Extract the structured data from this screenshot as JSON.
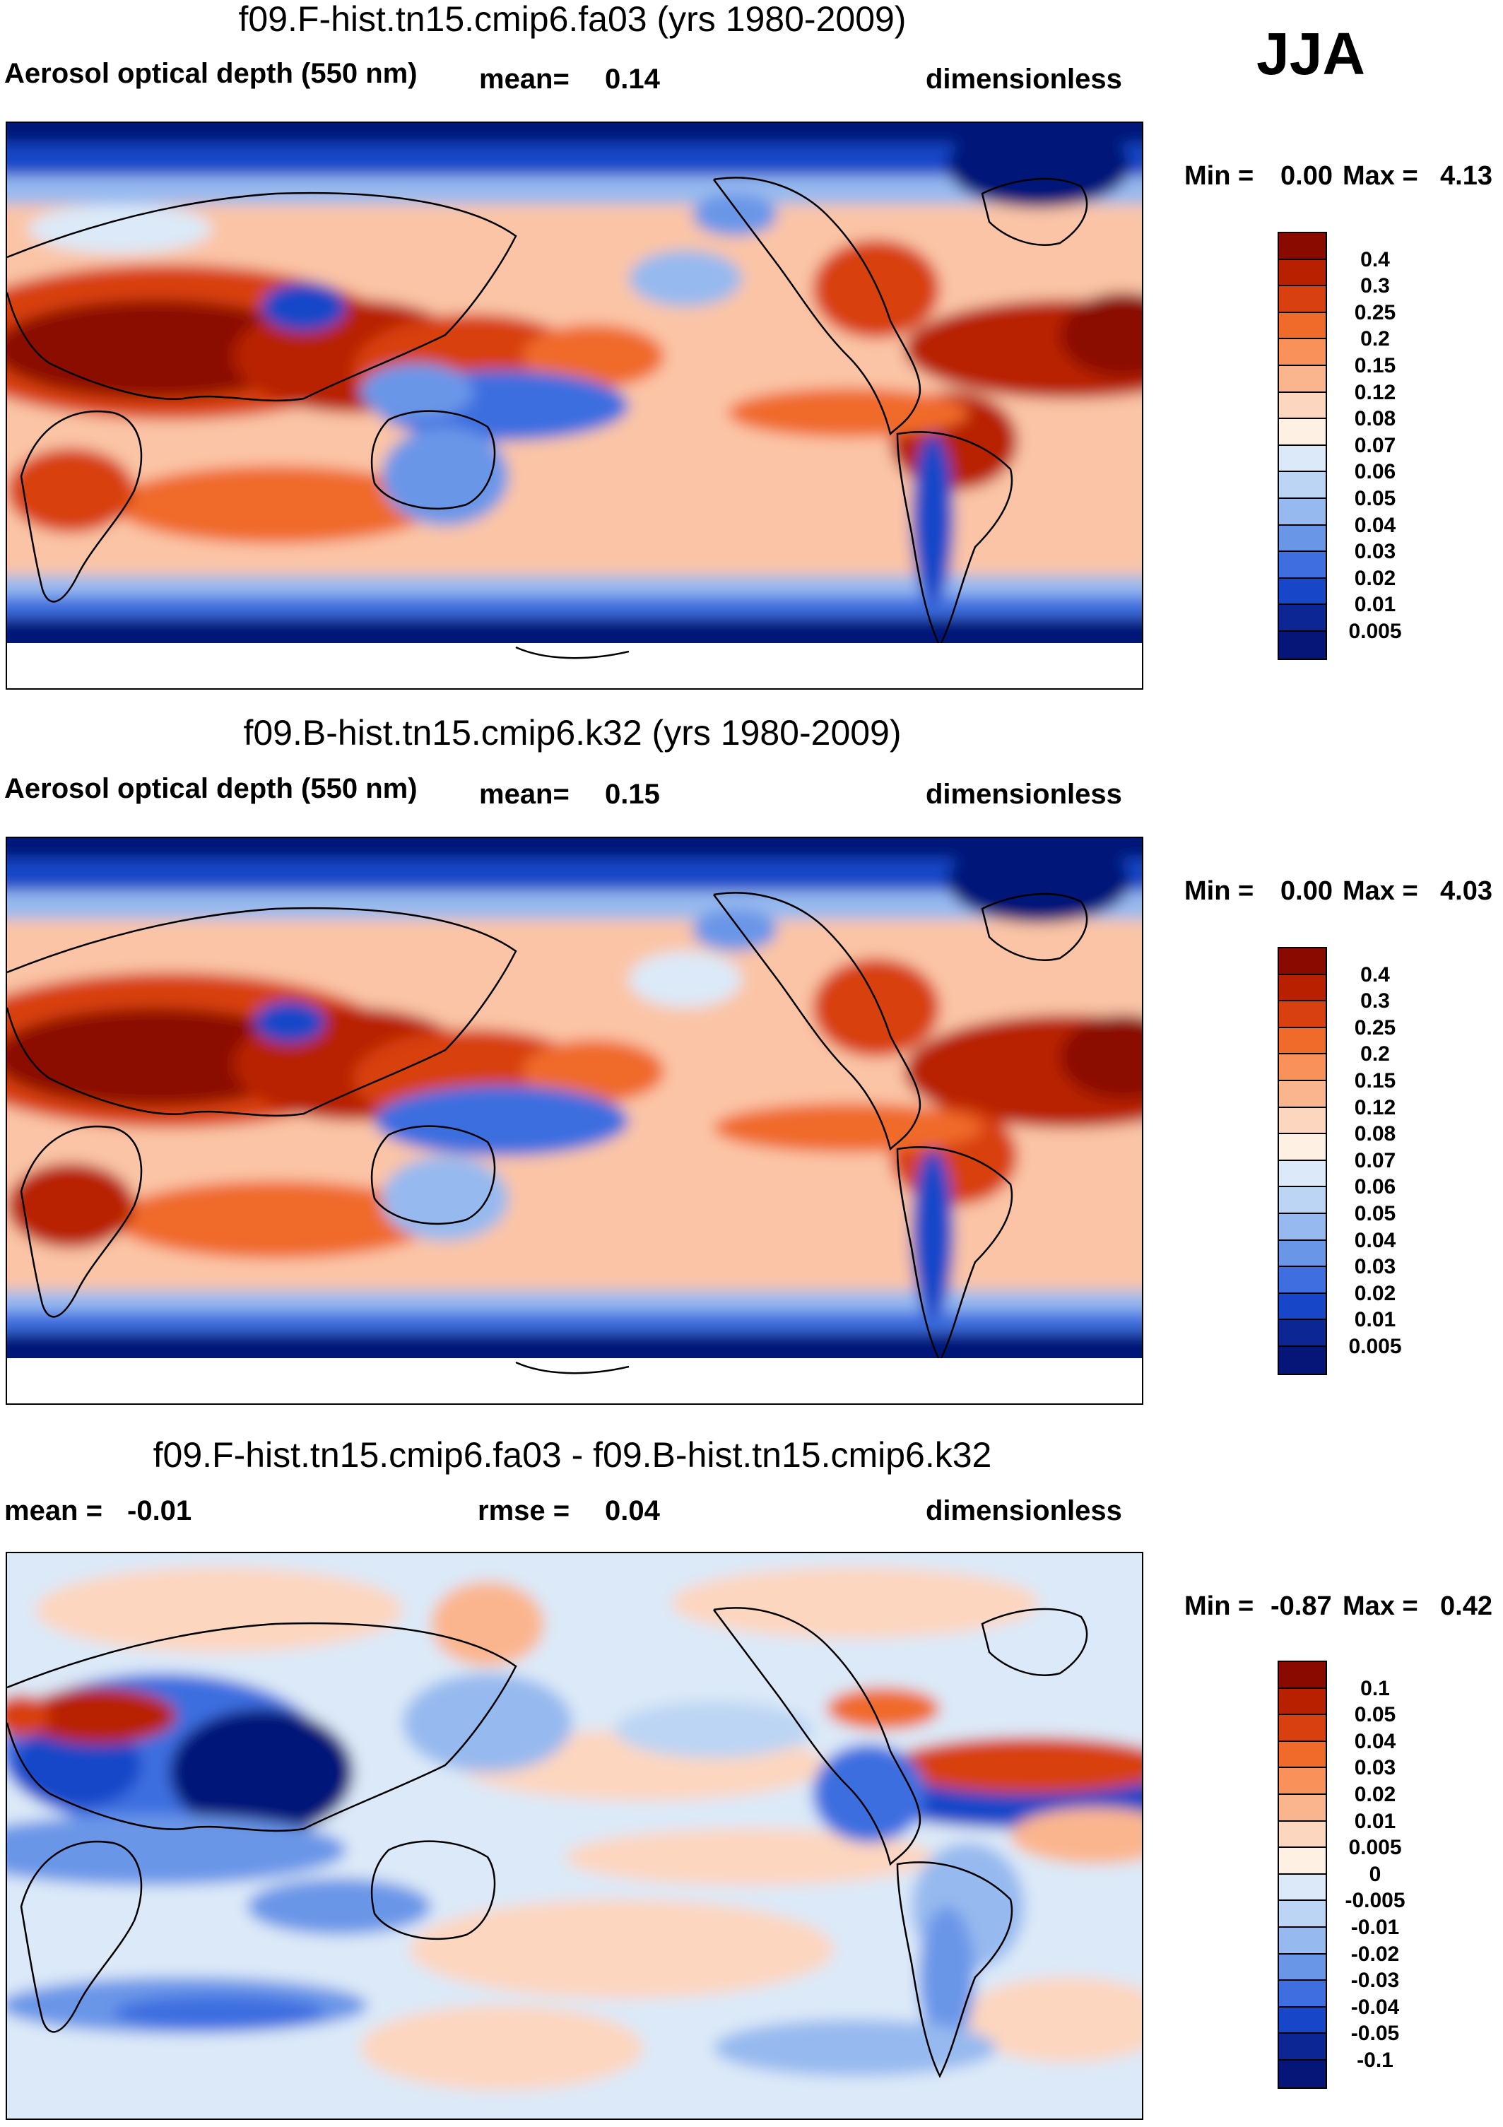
{
  "season": "JJA",
  "chart_data": [
    {
      "type": "heatmap",
      "title": "f09.F-hist.tn15.cmip6.fa03 (yrs 1980-2009)",
      "variable": "Aerosol optical depth (550 nm)",
      "mean_label": "mean=",
      "mean": "0.14",
      "units": "dimensionless",
      "min_label": "Min =",
      "min": "0.00",
      "max_label": "Max =",
      "max": "4.13",
      "levels": [
        "0.4",
        "0.3",
        "0.25",
        "0.2",
        "0.15",
        "0.12",
        "0.08",
        "0.07",
        "0.06",
        "0.05",
        "0.04",
        "0.03",
        "0.02",
        "0.01",
        "0.005"
      ],
      "colors": [
        "#8b0a00",
        "#b82000",
        "#d8400f",
        "#f06a2a",
        "#f9925a",
        "#fbb58e",
        "#fdd6bf",
        "#fff0e4",
        "#dce9f8",
        "#bcd5f4",
        "#96b9ef",
        "#6a96e8",
        "#3e6ee0",
        "#1746c8",
        "#0c2694",
        "#061578"
      ]
    },
    {
      "type": "heatmap",
      "title": "f09.B-hist.tn15.cmip6.k32 (yrs 1980-2009)",
      "variable": "Aerosol optical depth (550 nm)",
      "mean_label": "mean=",
      "mean": "0.15",
      "units": "dimensionless",
      "min_label": "Min =",
      "min": "0.00",
      "max_label": "Max =",
      "max": "4.03",
      "levels": [
        "0.4",
        "0.3",
        "0.25",
        "0.2",
        "0.15",
        "0.12",
        "0.08",
        "0.07",
        "0.06",
        "0.05",
        "0.04",
        "0.03",
        "0.02",
        "0.01",
        "0.005"
      ],
      "colors": [
        "#8b0a00",
        "#b82000",
        "#d8400f",
        "#f06a2a",
        "#f9925a",
        "#fbb58e",
        "#fdd6bf",
        "#fff0e4",
        "#dce9f8",
        "#bcd5f4",
        "#96b9ef",
        "#6a96e8",
        "#3e6ee0",
        "#1746c8",
        "#0c2694",
        "#061578"
      ]
    },
    {
      "type": "heatmap",
      "title": "f09.F-hist.tn15.cmip6.fa03 - f09.B-hist.tn15.cmip6.k32",
      "mean_label": "mean =",
      "mean": "-0.01",
      "rmse_label": "rmse =",
      "rmse": "0.04",
      "units": "dimensionless",
      "min_label": "Min =",
      "min": "-0.87",
      "max_label": "Max =",
      "max": "0.42",
      "levels": [
        "0.1",
        "0.05",
        "0.04",
        "0.03",
        "0.02",
        "0.01",
        "0.005",
        "0",
        "-0.005",
        "-0.01",
        "-0.02",
        "-0.03",
        "-0.04",
        "-0.05",
        "-0.1"
      ],
      "colors": [
        "#8b0a00",
        "#b82000",
        "#d8400f",
        "#f06a2a",
        "#f9925a",
        "#fbb58e",
        "#fdd6bf",
        "#fff0e4",
        "#dce9f8",
        "#bcd5f4",
        "#96b9ef",
        "#6a96e8",
        "#3e6ee0",
        "#1746c8",
        "#0c2694",
        "#061578"
      ]
    }
  ]
}
